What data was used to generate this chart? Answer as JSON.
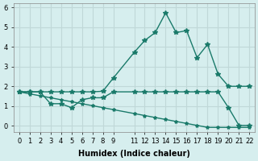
{
  "xlabel": "Humidex (Indice chaleur)",
  "ylabel": "",
  "bg_color": "#d6eeee",
  "grid_color": "#c0d8d8",
  "line_color": "#1a7a6a",
  "x_ticks": [
    0,
    1,
    2,
    3,
    4,
    5,
    6,
    7,
    8,
    9,
    11,
    12,
    13,
    14,
    15,
    16,
    17,
    18,
    19,
    20,
    21,
    22
  ],
  "xlim": [
    -0.5,
    22.5
  ],
  "ylim": [
    -0.3,
    6.2
  ],
  "y_ticks": [
    0,
    1,
    2,
    3,
    4,
    5,
    6
  ],
  "line1_x": [
    0,
    1,
    2,
    3,
    4,
    5,
    6,
    7,
    8,
    9,
    11,
    12,
    13,
    14,
    15,
    16,
    17,
    18,
    19,
    20,
    21,
    22
  ],
  "line1_y": [
    1.72,
    1.72,
    1.72,
    1.72,
    1.72,
    1.72,
    1.72,
    1.72,
    1.75,
    2.42,
    3.72,
    4.32,
    4.72,
    5.72,
    4.72,
    4.82,
    3.45,
    4.12,
    2.62,
    2.0,
    2.0,
    2.0
  ],
  "line2_x": [
    0,
    1,
    2,
    3,
    4,
    5,
    6,
    7,
    8,
    9,
    11,
    12,
    13,
    14,
    15,
    16,
    17,
    18,
    19,
    20,
    21,
    22
  ],
  "line2_y": [
    1.72,
    1.72,
    1.72,
    1.12,
    1.12,
    0.92,
    1.32,
    1.42,
    1.42,
    1.72,
    1.72,
    1.72,
    1.72,
    1.72,
    1.72,
    1.72,
    1.72,
    1.72,
    1.72,
    0.92,
    0.02,
    0.02
  ],
  "line3_x": [
    0,
    1,
    2,
    3,
    4,
    5,
    6,
    7,
    8,
    9,
    11,
    12,
    13,
    14,
    15,
    16,
    17,
    18,
    19,
    20,
    21,
    22
  ],
  "line3_y": [
    1.72,
    1.62,
    1.52,
    1.42,
    1.32,
    1.22,
    1.12,
    1.02,
    0.92,
    0.82,
    0.62,
    0.52,
    0.42,
    0.32,
    0.22,
    0.12,
    0.02,
    -0.08,
    -0.08,
    -0.08,
    -0.08,
    -0.08
  ]
}
